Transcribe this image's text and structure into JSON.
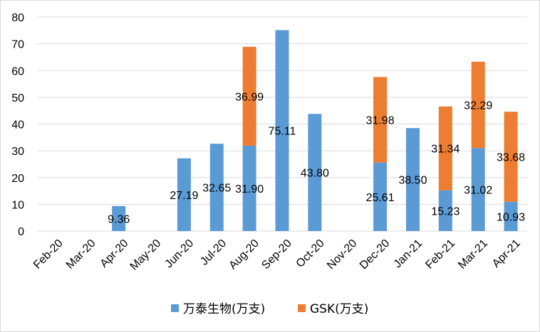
{
  "chart_data": {
    "type": "bar",
    "stacked": true,
    "categories": [
      "Feb-20",
      "Mar-20",
      "Apr-20",
      "May-20",
      "Jun-20",
      "Jul-20",
      "Aug-20",
      "Sep-20",
      "Oct-20",
      "Nov-20",
      "Dec-20",
      "Jan-21",
      "Feb-21",
      "Mar-21",
      "Apr-21"
    ],
    "series": [
      {
        "name": "万泰生物(万支)",
        "color": "#5b9bd5",
        "values": [
          null,
          null,
          9.36,
          null,
          27.19,
          32.65,
          31.9,
          75.11,
          43.8,
          null,
          25.61,
          38.5,
          15.23,
          31.02,
          10.93
        ],
        "labels": [
          "",
          "",
          "9.36",
          "",
          "27.19",
          "32.65",
          "31.90",
          "75.11",
          "43.80",
          "",
          "25.61",
          "38.50",
          "15.23",
          "31.02",
          "10.93"
        ]
      },
      {
        "name": "GSK(万支)",
        "color": "#ed7d31",
        "values": [
          null,
          null,
          null,
          null,
          null,
          null,
          36.99,
          null,
          null,
          null,
          31.98,
          null,
          31.34,
          32.29,
          33.68
        ],
        "labels": [
          "",
          "",
          "",
          "",
          "",
          "",
          "36.99",
          "",
          "",
          "",
          "31.98",
          "",
          "31.34",
          "32.29",
          "33.68"
        ]
      }
    ],
    "yticks": [
      "0",
      "10",
      "20",
      "30",
      "40",
      "50",
      "60",
      "70",
      "80"
    ],
    "ylim": [
      0,
      80
    ],
    "grid": true,
    "legend_position": "bottom"
  }
}
